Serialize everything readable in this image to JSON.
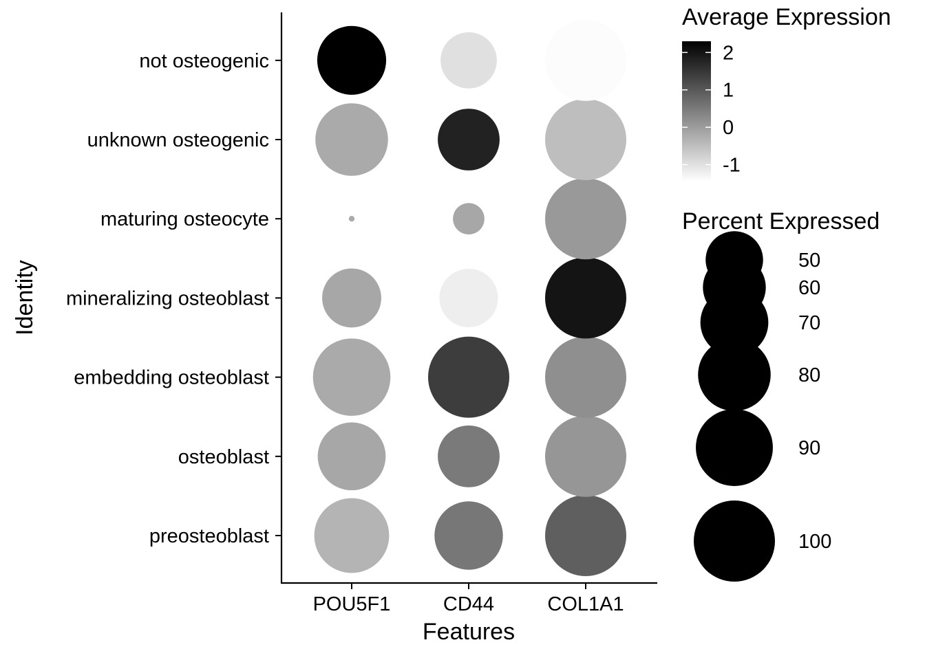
{
  "chart_data": {
    "type": "dot",
    "xlabel": "Features",
    "ylabel": "Identity",
    "features": [
      "POU5F1",
      "CD44",
      "COL1A1"
    ],
    "identities": [
      "preosteoblast",
      "osteoblast",
      "embedding osteoblast",
      "mineralizing osteoblast",
      "maturing osteocyte",
      "unknown osteogenic",
      "not osteogenic"
    ],
    "points": [
      {
        "identity": "preosteoblast",
        "feature": "POU5F1",
        "percent_expressed": 85,
        "avg_expression": -0.35
      },
      {
        "identity": "preosteoblast",
        "feature": "CD44",
        "percent_expressed": 71,
        "avg_expression": 0.55
      },
      {
        "identity": "preosteoblast",
        "feature": "COL1A1",
        "percent_expressed": 100,
        "avg_expression": 0.9
      },
      {
        "identity": "osteoblast",
        "feature": "POU5F1",
        "percent_expressed": 70,
        "avg_expression": -0.15
      },
      {
        "identity": "osteoblast",
        "feature": "CD44",
        "percent_expressed": 58,
        "avg_expression": 0.5
      },
      {
        "identity": "osteoblast",
        "feature": "COL1A1",
        "percent_expressed": 100,
        "avg_expression": 0.1
      },
      {
        "identity": "embedding osteoblast",
        "feature": "POU5F1",
        "percent_expressed": 91,
        "avg_expression": -0.2
      },
      {
        "identity": "embedding osteoblast",
        "feature": "CD44",
        "percent_expressed": 100,
        "avg_expression": 1.4
      },
      {
        "identity": "embedding osteoblast",
        "feature": "COL1A1",
        "percent_expressed": 100,
        "avg_expression": 0.2
      },
      {
        "identity": "mineralizing osteoblast",
        "feature": "POU5F1",
        "percent_expressed": 53,
        "avg_expression": -0.15
      },
      {
        "identity": "mineralizing osteoblast",
        "feature": "CD44",
        "percent_expressed": 52,
        "avg_expression": -1.2
      },
      {
        "identity": "mineralizing osteoblast",
        "feature": "COL1A1",
        "percent_expressed": 100,
        "avg_expression": 2.0
      },
      {
        "identity": "maturing osteocyte",
        "feature": "POU5F1",
        "percent_expressed": 0.5,
        "avg_expression": -0.2
      },
      {
        "identity": "maturing osteocyte",
        "feature": "CD44",
        "percent_expressed": 15,
        "avg_expression": -0.15
      },
      {
        "identity": "maturing osteocyte",
        "feature": "COL1A1",
        "percent_expressed": 100,
        "avg_expression": 0.05
      },
      {
        "identity": "unknown osteogenic",
        "feature": "POU5F1",
        "percent_expressed": 80,
        "avg_expression": -0.2
      },
      {
        "identity": "unknown osteogenic",
        "feature": "CD44",
        "percent_expressed": 58,
        "avg_expression": 1.8
      },
      {
        "identity": "unknown osteogenic",
        "feature": "COL1A1",
        "percent_expressed": 100,
        "avg_expression": -0.5
      },
      {
        "identity": "not osteogenic",
        "feature": "POU5F1",
        "percent_expressed": 72,
        "avg_expression": 2.3
      },
      {
        "identity": "not osteogenic",
        "feature": "CD44",
        "percent_expressed": 48,
        "avg_expression": -1.0
      },
      {
        "identity": "not osteogenic",
        "feature": "COL1A1",
        "percent_expressed": 100,
        "avg_expression": -1.4
      }
    ],
    "color_legend": {
      "title": "Average Expression",
      "ticks": [
        "2",
        "1",
        "0",
        "-1"
      ],
      "tick_values": [
        2,
        1,
        0,
        -1
      ],
      "range": [
        -1.45,
        2.3
      ],
      "low_color": "#ffffff",
      "high_color": "#000000"
    },
    "size_legend": {
      "title": "Percent Expressed",
      "labels": [
        "50",
        "60",
        "70",
        "80",
        "90",
        "100"
      ],
      "values": [
        50,
        60,
        70,
        80,
        90,
        100
      ]
    },
    "grid": false
  }
}
